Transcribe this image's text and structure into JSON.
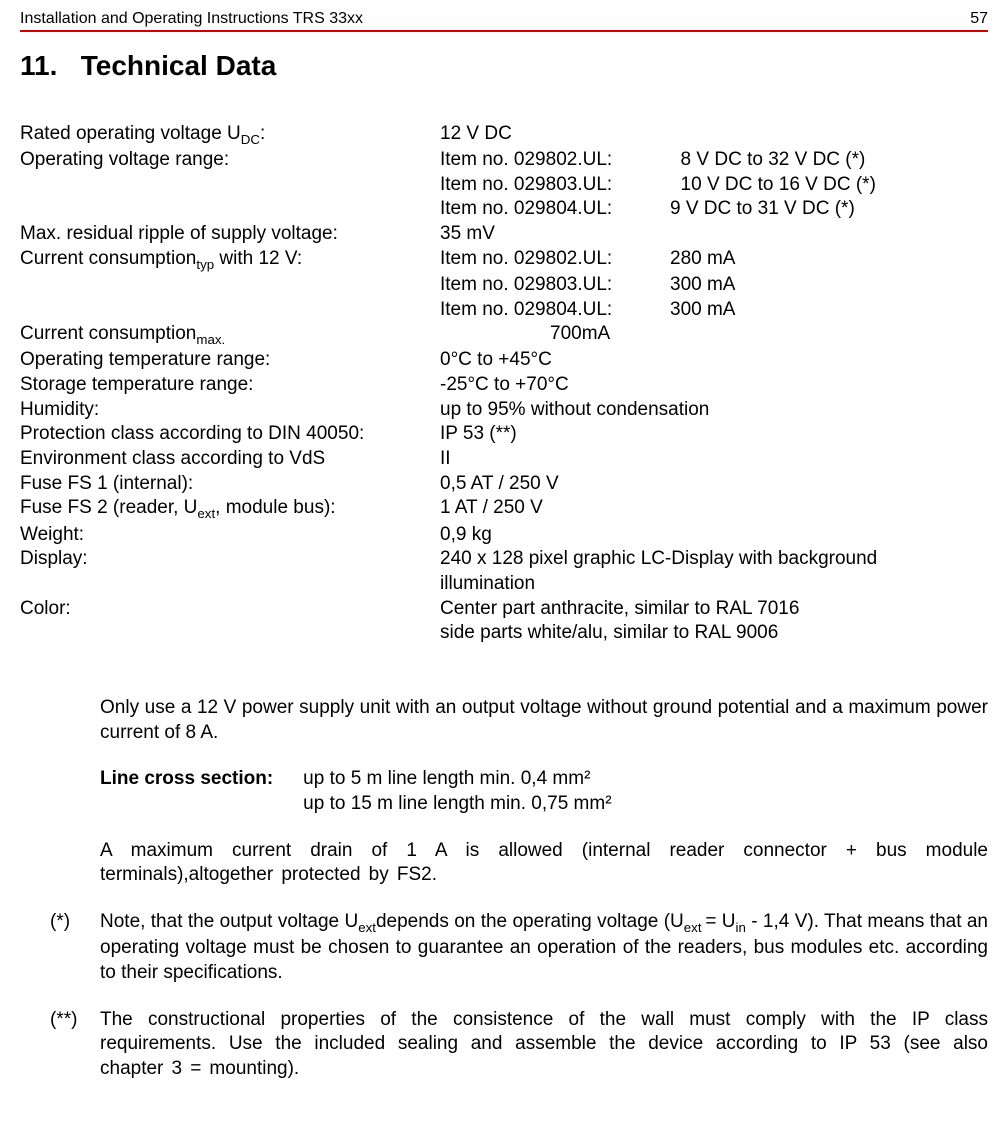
{
  "header": {
    "doc_title": "Installation and Operating Instructions TRS 33xx",
    "page_number": "57"
  },
  "section": {
    "number": "11.",
    "title": "Technical Data"
  },
  "specs": {
    "rated_voltage_label_pre": "Rated operating voltage U",
    "rated_voltage_label_sub": "DC",
    "rated_voltage_label_post": ":",
    "rated_voltage_value": "12 V DC",
    "op_range_label": "Operating voltage range:",
    "op_range_items": [
      {
        "item": "Item no. 029802.UL:",
        "value": "  8 V DC to 32 V DC (*)"
      },
      {
        "item": "Item no. 029803.UL:",
        "value": "  10 V DC to 16 V DC (*)"
      },
      {
        "item": "Item no. 029804.UL:",
        "value": "9 V DC to 31 V DC (*)"
      }
    ],
    "ripple_label": "Max. residual ripple of supply voltage:",
    "ripple_value": "35 mV",
    "current_typ_label_pre": "Current consumption",
    "current_typ_label_sub": "typ",
    "current_typ_label_post": " with 12 V:",
    "current_typ_items": [
      {
        "item": "Item no. 029802.UL:",
        "value": "280 mA"
      },
      {
        "item": "Item no. 029803.UL:",
        "value": "300 mA"
      },
      {
        "item": "Item no. 029804.UL:",
        "value": "300 mA"
      }
    ],
    "current_max_label_pre": "Current consumption",
    "current_max_label_sub": "max.",
    "current_max_value": "700mA",
    "op_temp_label": "Operating temperature range:",
    "op_temp_value": "0°C to +45°C",
    "storage_temp_label": "Storage temperature range:",
    "storage_temp_value": "-25°C to +70°C",
    "humidity_label": "Humidity:",
    "humidity_value": "up to 95% without condensation",
    "protection_label": "Protection class according to DIN 40050:",
    "protection_value": "IP 53 (**)",
    "env_label": "Environment class according to VdS",
    "env_value": "II",
    "fuse1_label": "Fuse FS 1 (internal):",
    "fuse1_value": "0,5 AT / 250 V",
    "fuse2_label_pre": "Fuse FS 2 (reader, U",
    "fuse2_label_sub": "ext",
    "fuse2_label_post": ", module bus):",
    "fuse2_value": "1 AT / 250 V",
    "weight_label": "Weight:",
    "weight_value": "0,9 kg",
    "display_label": "Display:",
    "display_value1": "240 x 128 pixel graphic LC-Display with background",
    "display_value2": "illumination",
    "color_label": "Color:",
    "color_value1": "Center part anthracite, similar to RAL 7016",
    "color_value2": "side parts white/alu, similar to RAL 9006"
  },
  "notes": {
    "psu": "Only use a 12 V power supply unit with an output voltage without ground potential and a maximum power current of 8 A.",
    "lcs_label": "Line cross section:",
    "lcs_line1": "up to 5 m line length min. 0,4 mm²",
    "lcs_line2": "up to 15 m line length min. 0,75 mm²",
    "drain": "A maximum current drain of 1 A is allowed (internal reader connector + bus module terminals),altogether protected by FS2.",
    "star_marker": "(*)",
    "star_pre": "Note, that the output voltage U",
    "star_sub1": "ext",
    "star_mid": "depends on the operating voltage (U",
    "star_sub2": "ext ",
    "star_eq": "= U",
    "star_sub3": "in",
    "star_post": " - 1,4 V). That means that an operating voltage must be chosen to guarantee an operation of the readers, bus modules etc. according to their specifications.",
    "dstar_marker": "(**)",
    "dstar_text": "The constructional properties of the consistence of the wall must comply with the IP class requirements. Use the included sealing and assemble the device according to IP 53 (see also chapter 3 = mounting)."
  }
}
